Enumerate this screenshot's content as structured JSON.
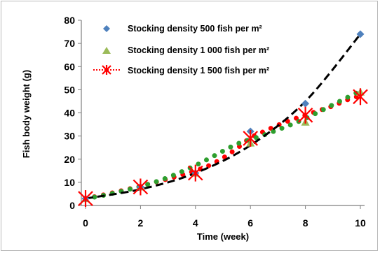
{
  "chart_data": {
    "type": "scatter",
    "xlabel": "Time (week)",
    "ylabel": "Fish body weight (g)",
    "xlim": [
      0,
      10
    ],
    "ylim": [
      0,
      80
    ],
    "xticks": [
      "0",
      "2",
      "4",
      "6",
      "8",
      "10"
    ],
    "yticks": [
      "0",
      "10",
      "20",
      "30",
      "40",
      "50",
      "60",
      "70",
      "80"
    ],
    "grid": false,
    "legend_position": "top-left",
    "series": [
      {
        "name": "Stocking density 500 fish per m²",
        "marker": "diamond",
        "color": "#4f81bd",
        "x": [
          0,
          2,
          4,
          6,
          8,
          10
        ],
        "y": [
          3,
          8,
          14,
          32,
          44,
          74
        ],
        "trend": {
          "x": [
            0,
            2,
            4,
            6,
            8,
            10
          ],
          "y": [
            3,
            7,
            14,
            26,
            45,
            74
          ],
          "color": "#000000",
          "style": "dashed"
        }
      },
      {
        "name": "Stocking density 1 000 fish per m²",
        "marker": "triangle",
        "color": "#9bbb59",
        "x": [
          0,
          2,
          4,
          6,
          8,
          10
        ],
        "y": [
          3,
          8,
          14,
          27,
          36,
          49
        ],
        "trend": {
          "x": [
            0,
            0.5,
            1,
            1.5,
            2,
            2.5,
            3,
            3.5,
            4,
            4.5,
            5,
            5.5,
            6,
            6.5,
            7,
            7.5,
            8,
            8.5,
            9,
            9.5,
            10
          ],
          "y": [
            3,
            4,
            5.3,
            6.7,
            8.2,
            10,
            12.1,
            14.6,
            17.3,
            20.3,
            23.5,
            26.5,
            28.5,
            30.5,
            32.7,
            35,
            37.6,
            40.5,
            43.5,
            46.5,
            49.5
          ],
          "color": "#2e9e2e",
          "style": "dotted"
        }
      },
      {
        "name": "Stocking density 1 500 fish per m²",
        "marker": "x-star",
        "color": "#ff0000",
        "x": [
          0,
          2,
          4,
          6,
          8,
          10
        ],
        "y": [
          3,
          8,
          14,
          29,
          39,
          47
        ],
        "trend": {
          "x": [
            0,
            0.5,
            1,
            1.5,
            2,
            2.5,
            3,
            3.5,
            4,
            4.5,
            5,
            5.5,
            6,
            6.5,
            7,
            7.5,
            8,
            8.5,
            9,
            9.5,
            10
          ],
          "y": [
            3,
            4.2,
            5.5,
            6.9,
            8.3,
            9.9,
            11.5,
            13.2,
            15,
            17.3,
            20.5,
            24.6,
            29.2,
            32,
            34.7,
            37,
            39,
            41,
            43,
            45.5,
            47.5
          ],
          "color": "#ff0000",
          "style": "dotted"
        }
      }
    ]
  }
}
